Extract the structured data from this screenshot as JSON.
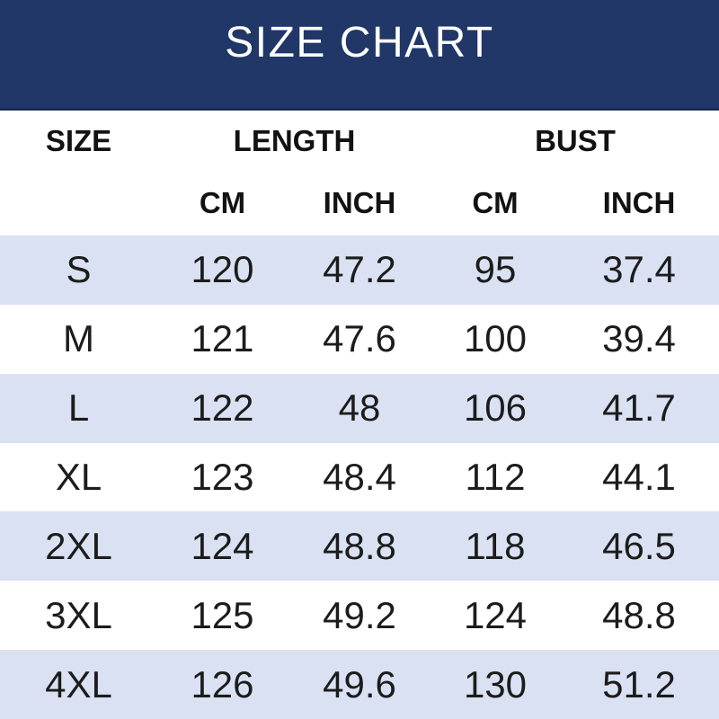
{
  "page": {
    "banner_color": "#203768",
    "banner_border_color": "#1a2c52",
    "row_alt_color": "#d9e1f2",
    "row_base_color": "#ffffff",
    "header_text_color": "#121212",
    "data_text_color": "#1c1c1c",
    "title_color": "#ffffff"
  },
  "chart_data": {
    "type": "table",
    "title": "SIZE CHART",
    "size_label": "SIZE",
    "group_labels": {
      "length": "LENGTH",
      "bust": "BUST"
    },
    "units": [
      "CM",
      "INCH",
      "CM",
      "INCH"
    ],
    "columns": [
      "SIZE",
      "LENGTH (CM)",
      "LENGTH (INCH)",
      "BUST (CM)",
      "BUST (INCH)"
    ],
    "rows": [
      [
        "S",
        "120",
        "47.2",
        "95",
        "37.4"
      ],
      [
        "M",
        "121",
        "47.6",
        "100",
        "39.4"
      ],
      [
        "L",
        "122",
        "48",
        "106",
        "41.7"
      ],
      [
        "XL",
        "123",
        "48.4",
        "112",
        "44.1"
      ],
      [
        "2XL",
        "124",
        "48.8",
        "118",
        "46.5"
      ],
      [
        "3XL",
        "125",
        "49.2",
        "124",
        "48.8"
      ],
      [
        "4XL",
        "126",
        "49.6",
        "130",
        "51.2"
      ]
    ]
  }
}
